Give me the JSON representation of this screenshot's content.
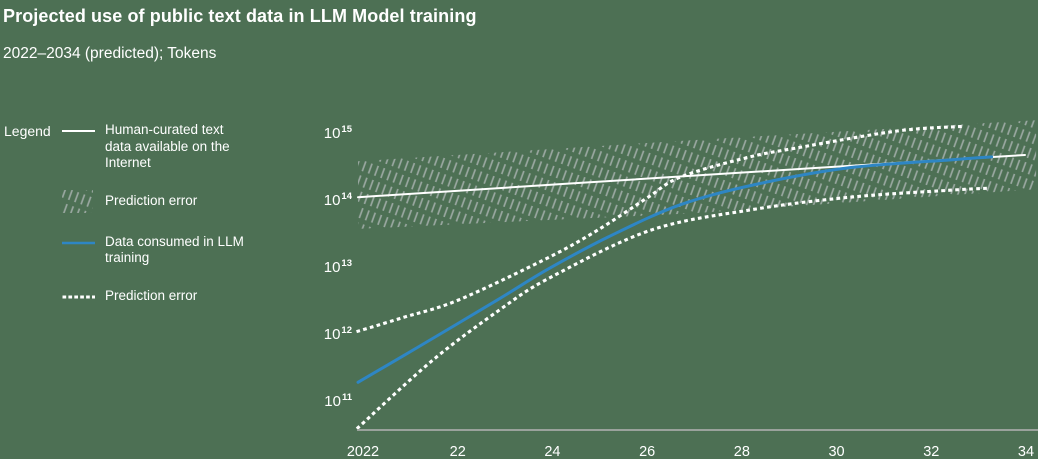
{
  "colors": {
    "background": "#4d7054",
    "accent_blue": "#2e86c4",
    "axis_line": "#9aa29c",
    "text": "#ffffff",
    "hatch": "#d6d3dd"
  },
  "header": {
    "title": "Projected use of public text data in LLM Model training",
    "subtitle": "2022–2034 (predicted); Tokens"
  },
  "legend": {
    "heading": "Legend",
    "items": [
      {
        "label": "Human-curated text data available on the Internet",
        "swatch": "solid-line",
        "color": "#ffffff"
      },
      {
        "label": "Prediction error",
        "swatch": "hatch",
        "color": "#d6d3dd"
      },
      {
        "label": "Data consumed in LLM training",
        "swatch": "solid-line",
        "color": "#2e86c4"
      },
      {
        "label": "Prediction error",
        "swatch": "dotted-line",
        "color": "#ffffff"
      }
    ]
  },
  "chart_data": {
    "type": "line",
    "title": "Projected use of public text data in LLM Model training",
    "subtitle": "2022–2034 (predicted); Tokens",
    "unit": "Tokens",
    "grid": false,
    "legend_position": "left",
    "x_axis": {
      "tick_labels": [
        "2022",
        "22",
        "24",
        "26",
        "28",
        "30",
        "32",
        "34"
      ],
      "range_years": [
        2022,
        2034
      ]
    },
    "y_axis": {
      "scale": "log10",
      "tick_label_base": "10",
      "tick_exponents": [
        15,
        14,
        13,
        12,
        11
      ],
      "range": [
        40000000000.0,
        2000000000000000.0
      ]
    },
    "series": [
      {
        "name": "Human-curated text data available on the Internet",
        "style": "solid",
        "color": "#ffffff",
        "points": [
          [
            2022,
            110000000000000.0
          ],
          [
            2028,
            230000000000000.0
          ],
          [
            2034,
            470000000000000.0
          ]
        ]
      },
      {
        "name": "Prediction error human-curated data band",
        "style": "hatch-band",
        "color": "#d6d3dd",
        "upper": [
          [
            2022,
            380000000000000.0
          ],
          [
            2028,
            780000000000000.0
          ],
          [
            2034.2,
            1550000000000000.0
          ]
        ],
        "lower": [
          [
            2022,
            37000000000000.0
          ],
          [
            2028,
            63000000000000.0
          ],
          [
            2034.2,
            145000000000000.0
          ]
        ]
      },
      {
        "name": "Data consumed in LLM training",
        "style": "solid",
        "color": "#2e86c4",
        "points": [
          [
            2022,
            190000000000.0
          ],
          [
            2023.1,
            650000000000.0
          ],
          [
            2024.5,
            3200000000000.0
          ],
          [
            2025.4,
            9100000000000.0
          ],
          [
            2026.5,
            28000000000000.0
          ],
          [
            2027.8,
            85000000000000.0
          ],
          [
            2029.2,
            174000000000000.0
          ],
          [
            2030.8,
            300000000000000.0
          ],
          [
            2032.7,
            400000000000000.0
          ],
          [
            2033.4,
            440000000000000.0
          ]
        ]
      },
      {
        "name": "Prediction error LLM training data dotted",
        "style": "dotted",
        "color": "#ffffff",
        "upper": [
          [
            2022,
            1100000000000.0
          ],
          [
            2022.8,
            1750000000000.0
          ],
          [
            2023.8,
            3200000000000.0
          ],
          [
            2025.4,
            13500000000000.0
          ],
          [
            2026.3,
            35000000000000.0
          ],
          [
            2027.2,
            107000000000000.0
          ],
          [
            2027.8,
            220000000000000.0
          ],
          [
            2029.0,
            430000000000000.0
          ],
          [
            2029.9,
            600000000000000.0
          ],
          [
            2031.7,
            1070000000000000.0
          ],
          [
            2032.9,
            1260000000000000.0
          ]
        ],
        "lower": [
          [
            2022,
            40000000000.0
          ],
          [
            2023.35,
            410000000000.0
          ],
          [
            2024.55,
            2300000000000.0
          ],
          [
            2025.45,
            6900000000000.0
          ],
          [
            2027.25,
            35000000000000.0
          ],
          [
            2029.05,
            71000000000000.0
          ],
          [
            2030.85,
            110000000000000.0
          ],
          [
            2032.65,
            140000000000000.0
          ],
          [
            2033.37,
            150000000000000.0
          ]
        ]
      }
    ]
  }
}
